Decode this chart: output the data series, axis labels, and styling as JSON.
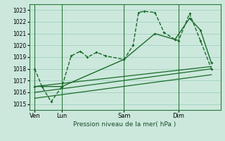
{
  "title": "Pression niveau de la mer( hPa )",
  "bg_color": "#cce8dc",
  "grid_color": "#99ccbb",
  "line_color": "#1a6b2a",
  "spine_color": "#2a7a3a",
  "ylim": [
    1014.5,
    1023.5
  ],
  "yticks": [
    1015,
    1016,
    1017,
    1018,
    1019,
    1020,
    1021,
    1022,
    1023
  ],
  "xlim": [
    0,
    10.5
  ],
  "day_positions": [
    0.3,
    1.8,
    5.2,
    8.2
  ],
  "day_labels": [
    "Ven",
    "Lun",
    "Sam",
    "Dim"
  ],
  "day_vlines": [
    0.3,
    1.8,
    5.2,
    8.2
  ],
  "series_main": {
    "x": [
      0.3,
      0.7,
      1.2,
      1.8,
      2.3,
      2.8,
      3.2,
      3.7,
      4.2,
      5.2,
      5.7,
      6.0,
      6.3,
      6.9,
      7.4,
      8.0,
      8.2,
      8.8,
      9.4,
      10.0
    ],
    "y": [
      1018.0,
      1016.5,
      1015.2,
      1016.5,
      1019.1,
      1019.5,
      1019.0,
      1019.4,
      1019.1,
      1018.8,
      1020.0,
      1022.8,
      1022.9,
      1022.8,
      1021.1,
      1020.5,
      1020.4,
      1022.7,
      1020.4,
      1018.0
    ]
  },
  "series_second": {
    "x": [
      0.3,
      1.8,
      5.2,
      6.9,
      8.0,
      8.8,
      9.4,
      10.0
    ],
    "y": [
      1016.5,
      1016.5,
      1018.8,
      1021.0,
      1020.5,
      1022.3,
      1021.3,
      1018.5
    ]
  },
  "trend_lines": [
    {
      "x": [
        0.3,
        10.0
      ],
      "y": [
        1016.5,
        1018.2
      ]
    },
    {
      "x": [
        0.3,
        10.0
      ],
      "y": [
        1016.0,
        1018.0
      ]
    },
    {
      "x": [
        0.3,
        10.0
      ],
      "y": [
        1015.5,
        1017.5
      ]
    }
  ]
}
